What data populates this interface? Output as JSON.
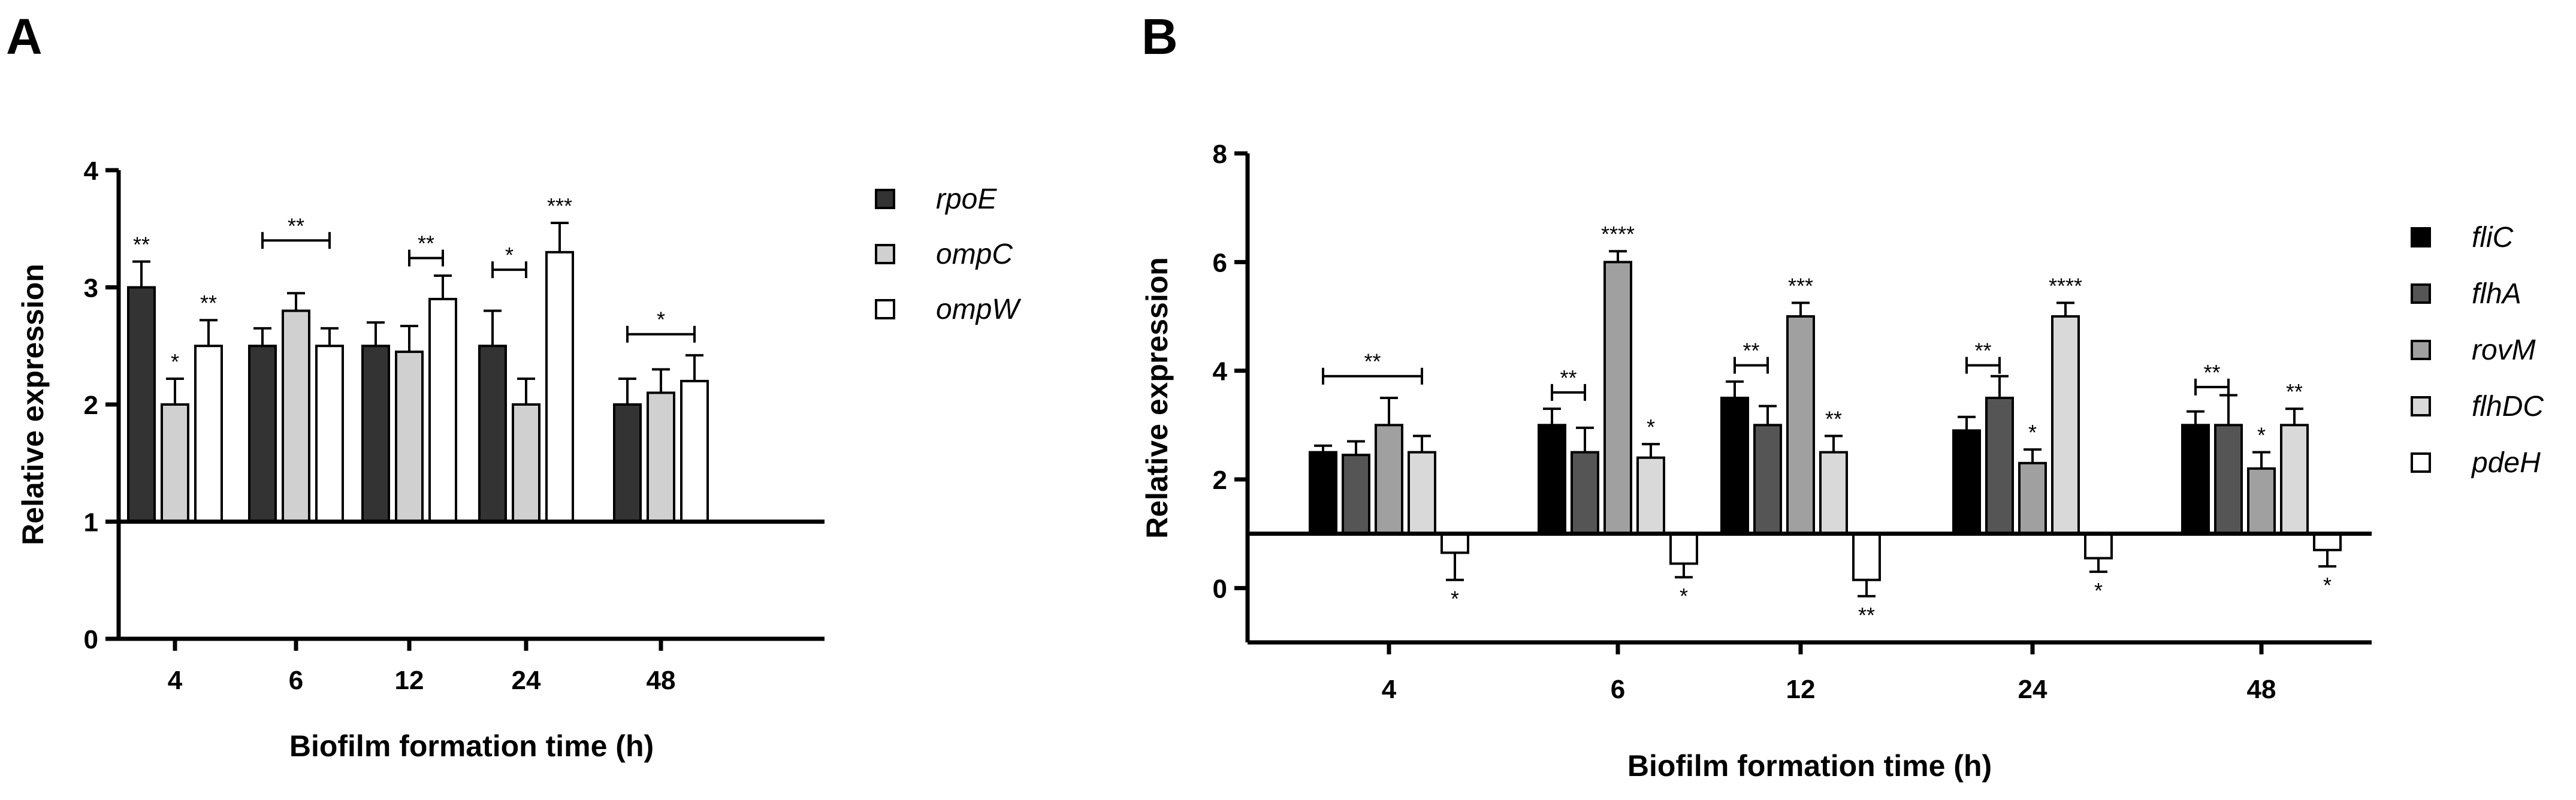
{
  "chart_data": [
    {
      "panel": "A",
      "type": "bar",
      "xlabel": "Biofilm formation time (h)",
      "ylabel": "Relative expression",
      "ylim": [
        0,
        4
      ],
      "yticks": [
        "0",
        "1",
        "2",
        "3",
        "4"
      ],
      "baseline": 1,
      "categories": [
        "4",
        "6",
        "12",
        "24",
        "48"
      ],
      "series": [
        {
          "name": "rpoE",
          "color": "#333333",
          "values": [
            3.0,
            2.5,
            2.5,
            2.5,
            2.0
          ],
          "errors": [
            0.22,
            0.15,
            0.2,
            0.3,
            0.22
          ],
          "stars": [
            "**",
            "",
            "",
            "",
            ""
          ]
        },
        {
          "name": "ompC",
          "color": "#d0d0d0",
          "values": [
            2.0,
            2.8,
            2.45,
            2.0,
            2.1
          ],
          "errors": [
            0.22,
            0.15,
            0.22,
            0.22,
            0.2
          ],
          "stars": [
            "*",
            "",
            "",
            "",
            ""
          ]
        },
        {
          "name": "ompW",
          "color": "#ffffff",
          "values": [
            2.5,
            2.5,
            2.9,
            3.3,
            2.2
          ],
          "errors": [
            0.22,
            0.15,
            0.2,
            0.25,
            0.22
          ],
          "stars": [
            "**",
            "",
            "",
            "***",
            ""
          ]
        }
      ],
      "brackets": [
        {
          "from_cat": 1,
          "from_series": 0,
          "to_cat": 1,
          "to_series": 2,
          "level": 3.4,
          "label": "**"
        },
        {
          "from_cat": 2,
          "from_series": 1,
          "to_cat": 2,
          "to_series": 2,
          "level": 3.25,
          "label": "**"
        },
        {
          "from_cat": 3,
          "from_series": 0,
          "to_cat": 3,
          "to_series": 1,
          "level": 3.15,
          "label": "*"
        },
        {
          "from_cat": 4,
          "from_series": 0,
          "to_cat": 4,
          "to_series": 2,
          "level": 2.6,
          "label": "*"
        }
      ]
    },
    {
      "panel": "B",
      "type": "bar",
      "xlabel": "Biofilm formation time (h)",
      "ylabel": "Relative expression",
      "ylim": [
        -1,
        8
      ],
      "yticks": [
        "0",
        "2",
        "4",
        "6",
        "8"
      ],
      "baseline": 1,
      "categories": [
        "4",
        "6",
        "12",
        "24",
        "48"
      ],
      "series": [
        {
          "name": "fliC",
          "color": "#000000",
          "values": [
            2.5,
            3.0,
            3.5,
            2.9,
            3.0
          ],
          "errors": [
            0.12,
            0.3,
            0.3,
            0.25,
            0.25
          ],
          "stars": [
            "",
            "",
            "",
            "",
            ""
          ]
        },
        {
          "name": "flhA",
          "color": "#555555",
          "values": [
            2.45,
            2.5,
            3.0,
            3.5,
            3.0
          ],
          "errors": [
            0.25,
            0.45,
            0.35,
            0.4,
            0.55
          ],
          "stars": [
            "",
            "",
            "",
            "",
            ""
          ]
        },
        {
          "name": "rovM",
          "color": "#a0a0a0",
          "values": [
            3.0,
            6.0,
            5.0,
            2.3,
            2.2
          ],
          "errors": [
            0.5,
            0.2,
            0.25,
            0.25,
            0.3
          ],
          "stars": [
            "",
            "****",
            "***",
            "*",
            "*"
          ]
        },
        {
          "name": "flhDC",
          "color": "#d9d9d9",
          "values": [
            2.5,
            2.4,
            2.5,
            5.0,
            3.0
          ],
          "errors": [
            0.3,
            0.25,
            0.3,
            0.25,
            0.3
          ],
          "stars": [
            "",
            "*",
            "**",
            "****",
            "**"
          ]
        },
        {
          "name": "pdeH",
          "color": "#ffffff",
          "values": [
            0.65,
            0.45,
            0.15,
            0.55,
            0.7
          ],
          "errors": [
            0.5,
            0.25,
            0.3,
            0.25,
            0.3
          ],
          "stars": [
            "*",
            "*",
            "**",
            "*",
            "*"
          ]
        }
      ],
      "brackets": [
        {
          "from_cat": 0,
          "from_series": 0,
          "to_cat": 0,
          "to_series": 3,
          "level": 3.9,
          "label": "**"
        },
        {
          "from_cat": 1,
          "from_series": 0,
          "to_cat": 1,
          "to_series": 1,
          "level": 3.6,
          "label": "**"
        },
        {
          "from_cat": 2,
          "from_series": 0,
          "to_cat": 2,
          "to_series": 1,
          "level": 4.1,
          "label": "**"
        },
        {
          "from_cat": 3,
          "from_series": 0,
          "to_cat": 3,
          "to_series": 1,
          "level": 4.1,
          "label": "**"
        },
        {
          "from_cat": 4,
          "from_series": 0,
          "to_cat": 4,
          "to_series": 1,
          "level": 3.7,
          "label": "**"
        }
      ]
    }
  ]
}
